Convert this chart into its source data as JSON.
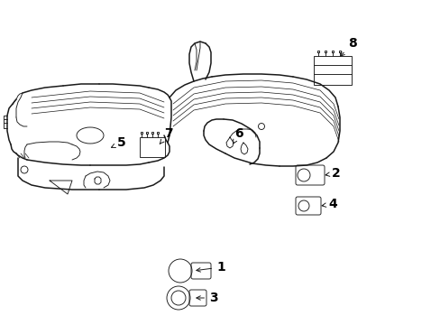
{
  "bg_color": "#ffffff",
  "line_color": "#1a1a1a",
  "label_color": "#000000",
  "lw_main": 1.1,
  "lw_thin": 0.65,
  "lw_rib": 0.5
}
